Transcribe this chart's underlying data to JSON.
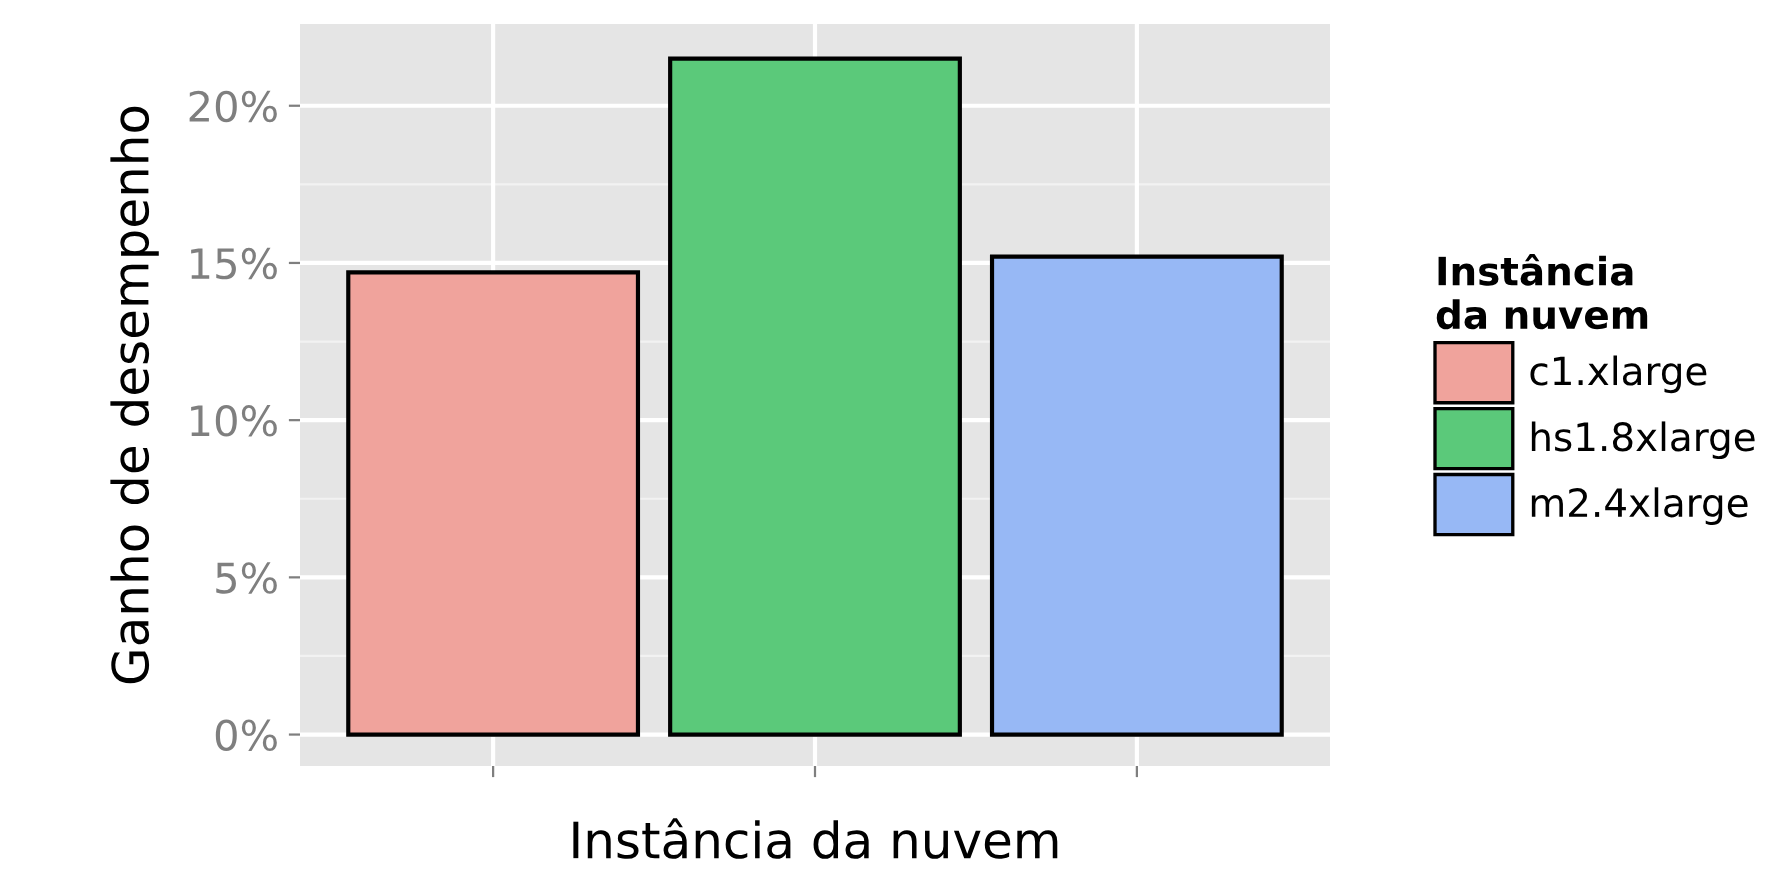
{
  "chart_data": {
    "type": "bar",
    "xlabel": "Instância da nuvem",
    "ylabel": "Ganho de desempenho",
    "legend_title": "Instância\nda nuvem",
    "categories": [
      null,
      null,
      null
    ],
    "series": [
      {
        "name": "c1.xlarge",
        "color": "#f0a39c",
        "values": [
          14.7,
          null,
          null
        ]
      },
      {
        "name": "hs1.8xlarge",
        "color": "#5bc97a",
        "values": [
          null,
          21.5,
          null
        ]
      },
      {
        "name": "m2.4xlarge",
        "color": "#97b8f5",
        "values": [
          null,
          null,
          15.2
        ]
      }
    ],
    "ylim": [
      -1.0,
      22.6
    ],
    "yticks": [
      {
        "value": 0,
        "label": "0%"
      },
      {
        "value": 5,
        "label": "5%"
      },
      {
        "value": 10,
        "label": "10%"
      },
      {
        "value": 15,
        "label": "15%"
      },
      {
        "value": 20,
        "label": "20%"
      }
    ],
    "grid": true,
    "legend": "right"
  }
}
